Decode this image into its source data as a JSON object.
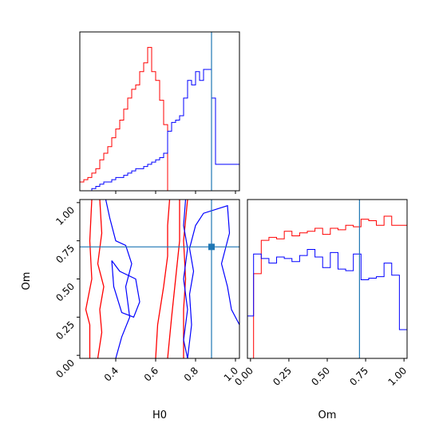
{
  "chart_data": {
    "type": "corner",
    "parameters": [
      "H0",
      "Om"
    ],
    "truth": {
      "H0": 0.88,
      "Om": 0.71
    },
    "colors": {
      "red": "#ff0000",
      "blue": "#0000ff",
      "truth": "#1f77b4"
    },
    "histograms": {
      "H0": {
        "xlim": [
          0.22,
          1.02
        ],
        "bin_edges": [
          0.22,
          0.24,
          0.26,
          0.28,
          0.3,
          0.32,
          0.34,
          0.36,
          0.38,
          0.4,
          0.42,
          0.44,
          0.46,
          0.48,
          0.5,
          0.52,
          0.54,
          0.56,
          0.58,
          0.6,
          0.62,
          0.64,
          0.66,
          0.68,
          0.7,
          0.72,
          0.74,
          0.76,
          0.78,
          0.8,
          0.82,
          0.84,
          0.86,
          0.88,
          0.9,
          0.92,
          0.94,
          0.96,
          0.98,
          1.0,
          1.02
        ],
        "red": [
          4,
          5,
          6,
          8,
          10,
          14,
          17,
          20,
          24,
          28,
          32,
          37,
          42,
          46,
          48,
          54,
          58,
          65,
          54,
          50,
          41,
          30,
          0,
          0,
          0,
          0,
          0,
          0,
          0,
          0,
          0,
          0,
          0,
          0,
          0,
          0,
          0,
          0,
          0,
          0
        ],
        "blue": [
          0,
          0,
          0,
          1,
          2,
          3,
          4,
          4,
          5,
          6,
          6,
          7,
          8,
          9,
          10,
          10,
          11,
          12,
          13,
          14,
          15,
          17,
          27,
          31,
          32,
          34,
          42,
          50,
          48,
          54,
          50,
          55,
          55,
          42,
          12,
          12,
          12,
          12,
          12,
          12
        ],
        "ylim": [
          0,
          72
        ]
      },
      "Om": {
        "xlim": [
          -0.02,
          1.02
        ],
        "ticks": [
          "0.00",
          "0.25",
          "0.50",
          "0.75",
          "1.00"
        ],
        "bin_edges": [
          -0.02,
          0.02,
          0.07,
          0.12,
          0.17,
          0.22,
          0.27,
          0.32,
          0.37,
          0.42,
          0.47,
          0.52,
          0.57,
          0.62,
          0.67,
          0.72,
          0.77,
          0.82,
          0.87,
          0.92,
          0.97,
          1.02
        ],
        "red": [
          0,
          0.56,
          0.78,
          0.8,
          0.79,
          0.84,
          0.81,
          0.83,
          0.84,
          0.86,
          0.82,
          0.86,
          0.85,
          0.88,
          0.87,
          0.92,
          0.91,
          0.88,
          0.94,
          0.88,
          0.88
        ],
        "blue": [
          0.28,
          0.69,
          0.66,
          0.63,
          0.67,
          0.66,
          0.64,
          0.68,
          0.72,
          0.67,
          0.6,
          0.7,
          0.59,
          0.58,
          0.69,
          0.52,
          0.53,
          0.54,
          0.63,
          0.55,
          0.19
        ],
        "ylim": [
          0,
          1.05
        ]
      }
    },
    "joint": {
      "xlabel": "H0",
      "ylabel": "Om",
      "xlim": [
        0.22,
        1.02
      ],
      "ylim": [
        -0.02,
        1.02
      ],
      "xticks": [
        "0.4",
        "0.6",
        "0.8",
        "1.0"
      ],
      "yticks": [
        "0.00",
        "0.25",
        "0.50",
        "0.75",
        "1.00"
      ],
      "red_contours": [
        [
          [
            0.27,
            -0.02
          ],
          [
            0.27,
            0.2
          ],
          [
            0.25,
            0.3
          ],
          [
            0.28,
            0.5
          ],
          [
            0.27,
            0.75
          ],
          [
            0.28,
            1.02
          ]
        ],
        [
          [
            0.31,
            -0.02
          ],
          [
            0.33,
            0.15
          ],
          [
            0.32,
            0.3
          ],
          [
            0.34,
            0.45
          ],
          [
            0.31,
            0.6
          ],
          [
            0.33,
            0.8
          ],
          [
            0.32,
            1.02
          ]
        ],
        [
          [
            0.6,
            -0.02
          ],
          [
            0.61,
            0.2
          ],
          [
            0.64,
            0.45
          ],
          [
            0.66,
            0.65
          ],
          [
            0.66,
            0.85
          ],
          [
            0.67,
            1.02
          ]
        ],
        [
          [
            0.66,
            -0.02
          ],
          [
            0.68,
            0.25
          ],
          [
            0.7,
            0.5
          ],
          [
            0.72,
            0.75
          ],
          [
            0.72,
            1.02
          ]
        ],
        [
          [
            0.74,
            -0.02
          ],
          [
            0.74,
            0.3
          ],
          [
            0.75,
            0.5
          ],
          [
            0.74,
            0.75
          ],
          [
            0.76,
            1.02
          ]
        ]
      ],
      "blue_contours": [
        [
          [
            0.35,
            1.02
          ],
          [
            0.37,
            0.9
          ],
          [
            0.4,
            0.75
          ],
          [
            0.45,
            0.72
          ],
          [
            0.48,
            0.6
          ],
          [
            0.45,
            0.45
          ],
          [
            0.47,
            0.25
          ],
          [
            0.43,
            0.12
          ],
          [
            0.4,
            -0.02
          ]
        ],
        [
          [
            0.38,
            0.62
          ],
          [
            0.42,
            0.55
          ],
          [
            0.5,
            0.5
          ],
          [
            0.52,
            0.35
          ],
          [
            0.49,
            0.25
          ],
          [
            0.43,
            0.28
          ],
          [
            0.39,
            0.45
          ],
          [
            0.38,
            0.62
          ]
        ],
        [
          [
            0.76,
            -0.02
          ],
          [
            0.78,
            0.2
          ],
          [
            0.77,
            0.4
          ],
          [
            0.79,
            0.55
          ],
          [
            0.77,
            0.7
          ],
          [
            0.8,
            0.85
          ],
          [
            0.84,
            0.93
          ],
          [
            0.96,
            0.98
          ],
          [
            0.97,
            0.8
          ],
          [
            0.93,
            0.6
          ],
          [
            0.96,
            0.45
          ],
          [
            0.98,
            0.3
          ],
          [
            1.02,
            0.2
          ]
        ],
        [
          [
            0.75,
            1.02
          ],
          [
            0.74,
            0.85
          ],
          [
            0.76,
            0.7
          ],
          [
            0.74,
            0.5
          ],
          [
            0.76,
            0.3
          ],
          [
            0.74,
            0.1
          ],
          [
            0.76,
            -0.02
          ]
        ]
      ]
    }
  }
}
